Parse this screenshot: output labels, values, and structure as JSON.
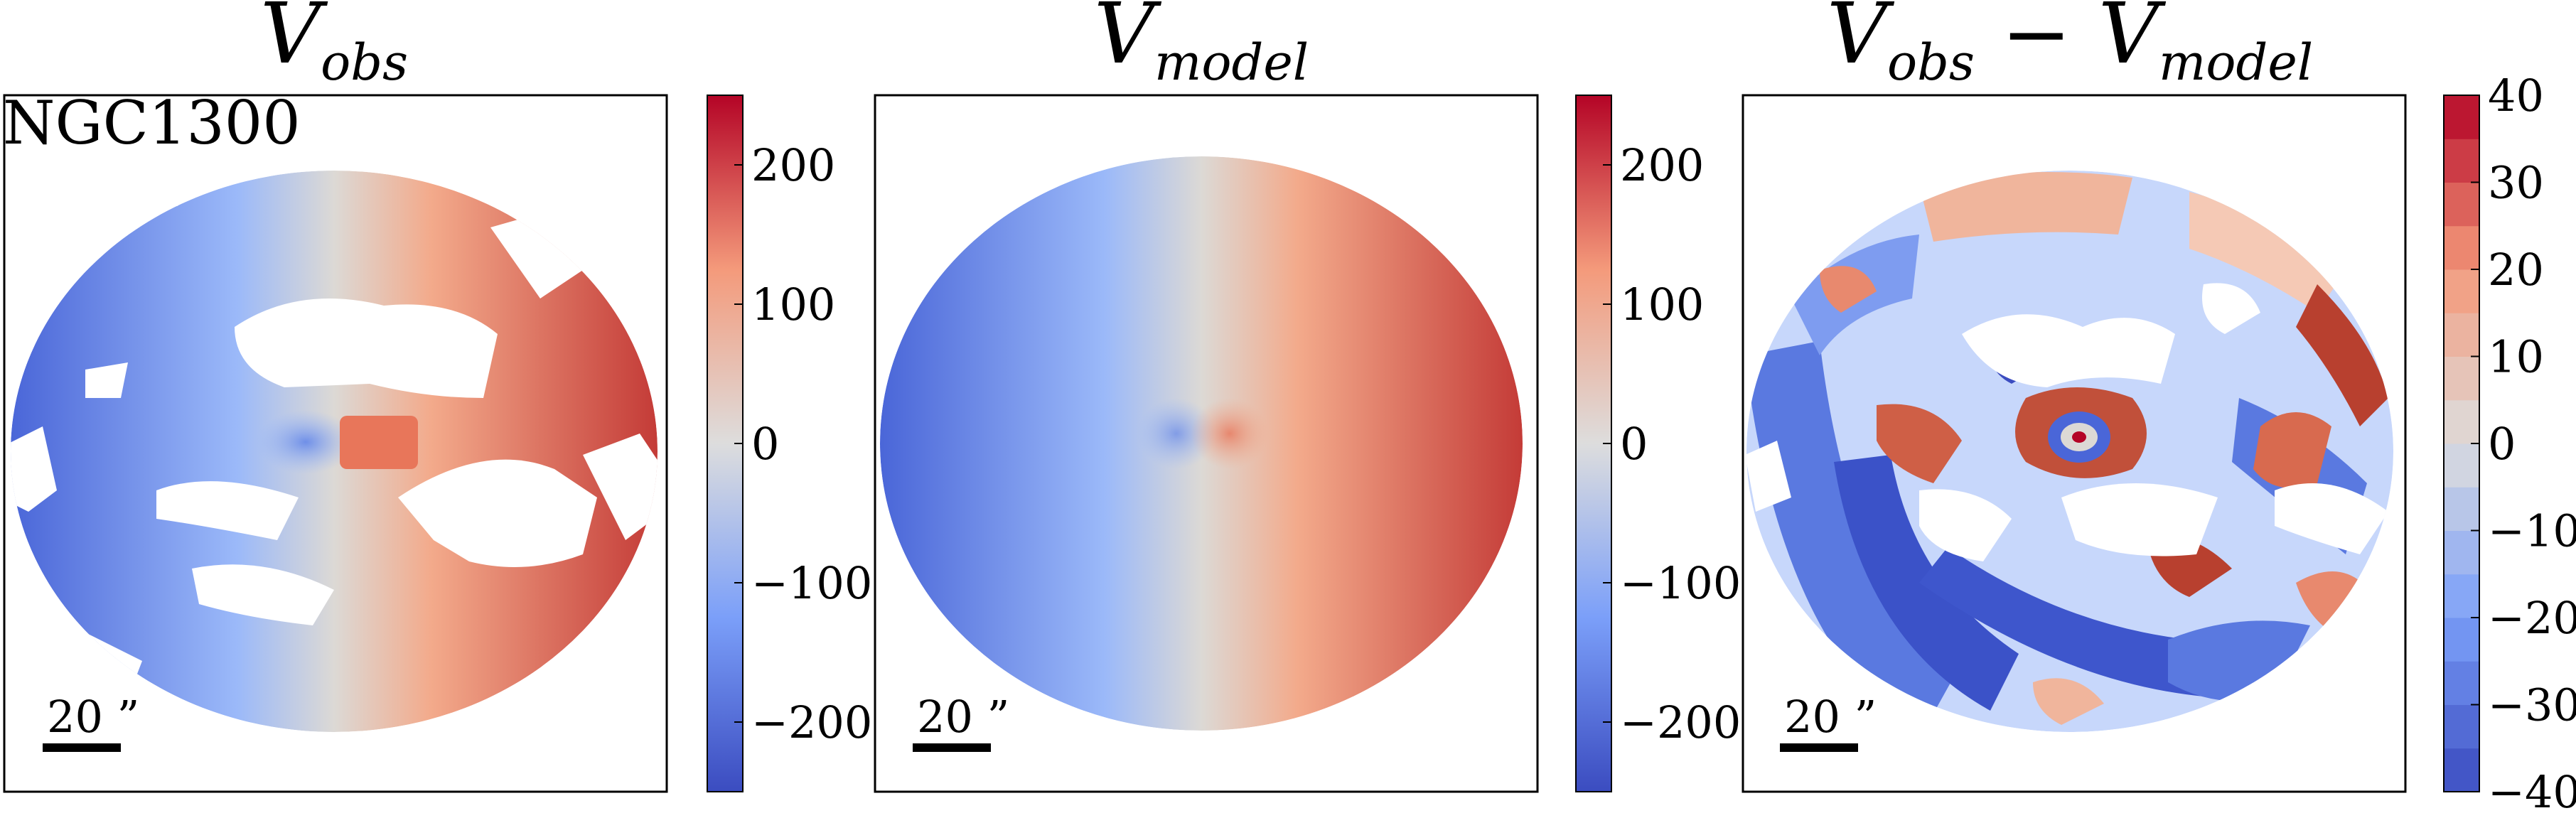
{
  "figure": {
    "galaxy_name": "NGC1300",
    "scale_bar_label": "20 ”"
  },
  "colors": {
    "negative": "#3b4cc0",
    "neutral": "#dddddd",
    "positive": "#b40426"
  },
  "chart_data": [
    {
      "type": "heatmap",
      "title": "V_obs",
      "title_main": "V",
      "title_sub": "obs",
      "colorbar": {
        "range": [
          -250,
          250
        ],
        "ticks": [
          -200,
          -100,
          0,
          100,
          200
        ],
        "tick_labels": [
          "−200",
          "−100",
          "0",
          "100",
          "200"
        ],
        "colormap": "coolwarm",
        "discrete": false
      },
      "field": {
        "shape": "elliptical disk",
        "velocity_gradient": "blue (approaching) on left, red (receding) on right",
        "coverage": "patchy with large gaps"
      }
    },
    {
      "type": "heatmap",
      "title": "V_model",
      "title_main": "V",
      "title_sub": "model",
      "colorbar": {
        "range": [
          -250,
          250
        ],
        "ticks": [
          -200,
          -100,
          0,
          100,
          200
        ],
        "tick_labels": [
          "−200",
          "−100",
          "0",
          "100",
          "200"
        ],
        "colormap": "coolwarm",
        "discrete": false
      },
      "field": {
        "shape": "elliptical disk",
        "velocity_gradient": "smooth blue-to-red left-to-right",
        "coverage": "complete"
      }
    },
    {
      "type": "heatmap",
      "title": "V_obs − V_model",
      "title_main1": "V",
      "title_sub1": "obs",
      "title_op": " − ",
      "title_main2": "V",
      "title_sub2": "model",
      "colorbar": {
        "range": [
          -40,
          40
        ],
        "ticks": [
          -40,
          -30,
          -20,
          -10,
          0,
          10,
          20,
          30,
          40
        ],
        "tick_labels": [
          "−40",
          "−30",
          "−20",
          "−10",
          "0",
          "10",
          "20",
          "30",
          "40"
        ],
        "colormap": "coolwarm",
        "discrete": true,
        "levels": 16
      },
      "field": {
        "shape": "elliptical disk",
        "pattern": "residuals with blue and red patches",
        "coverage": "patchy with large gaps"
      }
    }
  ]
}
